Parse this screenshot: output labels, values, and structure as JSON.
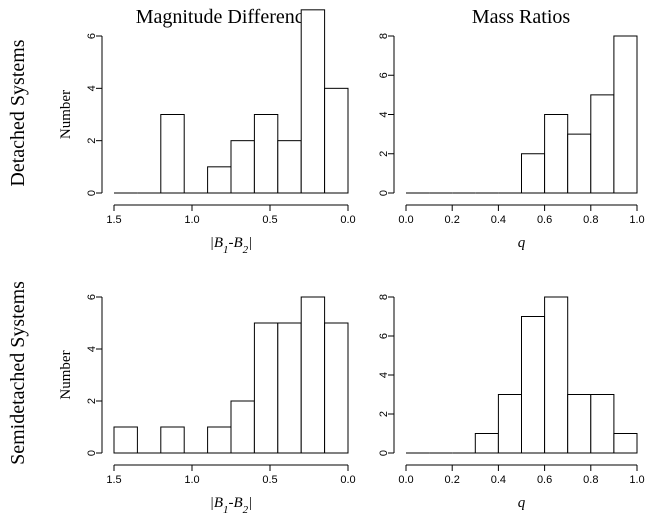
{
  "row_labels": [
    "Detached Systems",
    "Semidetached Systems"
  ],
  "column_titles": [
    "Magnitude Differences",
    "Mass Ratios"
  ],
  "chart_data": [
    {
      "type": "bar",
      "panel": "detached-magnitude",
      "title": "Magnitude Differences",
      "ylabel": "Number",
      "xlabel": "|B1-B2|",
      "xlim": [
        1.5,
        0.0
      ],
      "x_reversed": true,
      "ylim": [
        0,
        7
      ],
      "xticks": [
        "1.5",
        "1.0",
        "0.5",
        "0.0"
      ],
      "yticks": [
        "0",
        "2",
        "4",
        "6"
      ],
      "bin_edges": [
        1.5,
        1.35,
        1.2,
        1.05,
        0.9,
        0.75,
        0.6,
        0.45,
        0.3,
        0.15,
        0.0
      ],
      "values": [
        0,
        0,
        3,
        0,
        1,
        2,
        3,
        2,
        7,
        4
      ]
    },
    {
      "type": "bar",
      "panel": "detached-mass",
      "title": "Mass Ratios",
      "ylabel": "",
      "xlabel": "q",
      "xlim": [
        0.0,
        1.0
      ],
      "x_reversed": false,
      "ylim": [
        0,
        8
      ],
      "xticks": [
        "0.0",
        "0.2",
        "0.4",
        "0.6",
        "0.8",
        "1.0"
      ],
      "yticks": [
        "0",
        "2",
        "4",
        "6",
        "8"
      ],
      "bin_edges": [
        0.0,
        0.1,
        0.2,
        0.3,
        0.4,
        0.5,
        0.6,
        0.7,
        0.8,
        0.9,
        1.0
      ],
      "values": [
        0,
        0,
        0,
        0,
        0,
        2,
        4,
        3,
        5,
        8
      ]
    },
    {
      "type": "bar",
      "panel": "semidetached-magnitude",
      "title": "",
      "ylabel": "Number",
      "xlabel": "|B1-B2|",
      "xlim": [
        1.5,
        0.0
      ],
      "x_reversed": true,
      "ylim": [
        0,
        6
      ],
      "xticks": [
        "1.5",
        "1.0",
        "0.5",
        "0.0"
      ],
      "yticks": [
        "0",
        "2",
        "4",
        "6"
      ],
      "bin_edges": [
        1.5,
        1.35,
        1.2,
        1.05,
        0.9,
        0.75,
        0.6,
        0.45,
        0.3,
        0.15,
        0.0
      ],
      "values": [
        1,
        0,
        1,
        0,
        1,
        2,
        5,
        5,
        6,
        5
      ]
    },
    {
      "type": "bar",
      "panel": "semidetached-mass",
      "title": "",
      "ylabel": "",
      "xlabel": "q",
      "xlim": [
        0.0,
        1.0
      ],
      "x_reversed": false,
      "ylim": [
        0,
        8
      ],
      "xticks": [
        "0.0",
        "0.2",
        "0.4",
        "0.6",
        "0.8",
        "1.0"
      ],
      "yticks": [
        "0",
        "2",
        "4",
        "6",
        "8"
      ],
      "bin_edges": [
        0.0,
        0.1,
        0.2,
        0.3,
        0.4,
        0.5,
        0.6,
        0.7,
        0.8,
        0.9,
        1.0
      ],
      "values": [
        0,
        0,
        0,
        1,
        3,
        7,
        8,
        3,
        3,
        1
      ]
    }
  ]
}
